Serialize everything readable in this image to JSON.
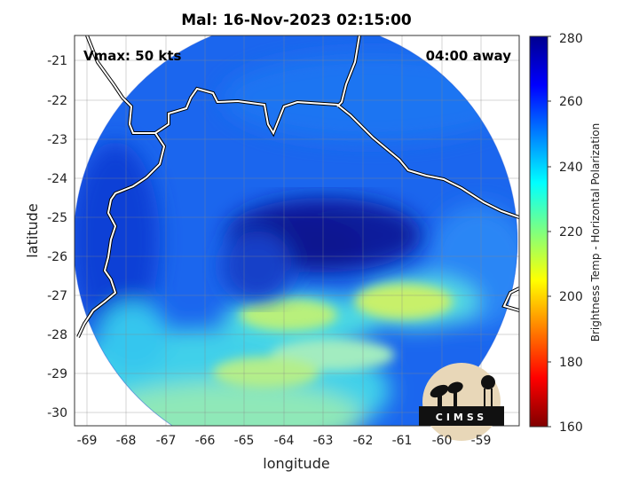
{
  "title": "Mal: 16-Nov-2023 02:15:00",
  "annotations": {
    "vmax": "Vmax: 50 kts",
    "time_away": "04:00 away"
  },
  "axes": {
    "xlabel": "longitude",
    "ylabel": "latitude",
    "x_ticks": [
      "-69",
      "-68",
      "-67",
      "-66",
      "-65",
      "-64",
      "-63",
      "-62",
      "-61",
      "-60",
      "-59"
    ],
    "y_ticks": [
      "-21",
      "-22",
      "-23",
      "-24",
      "-25",
      "-26",
      "-27",
      "-28",
      "-29",
      "-30"
    ],
    "xlim": [
      -69.3,
      -58.4
    ],
    "ylim": [
      -30.3,
      -20.4
    ],
    "grid": true
  },
  "colorbar": {
    "label": "Brightness Temp - Horizontal Polarization",
    "ticks": [
      "280",
      "260",
      "240",
      "220",
      "200",
      "180",
      "160"
    ],
    "range": [
      160,
      280
    ],
    "colormap": "jet"
  },
  "logo": {
    "text": "CIMSS"
  },
  "colors": {
    "deep_blue": "#0a1a8c",
    "mid_blue": "#1e6cf0",
    "cyan": "#2fd7e6",
    "yellow_green": "#c8f06a",
    "coast": "#ffffff"
  }
}
